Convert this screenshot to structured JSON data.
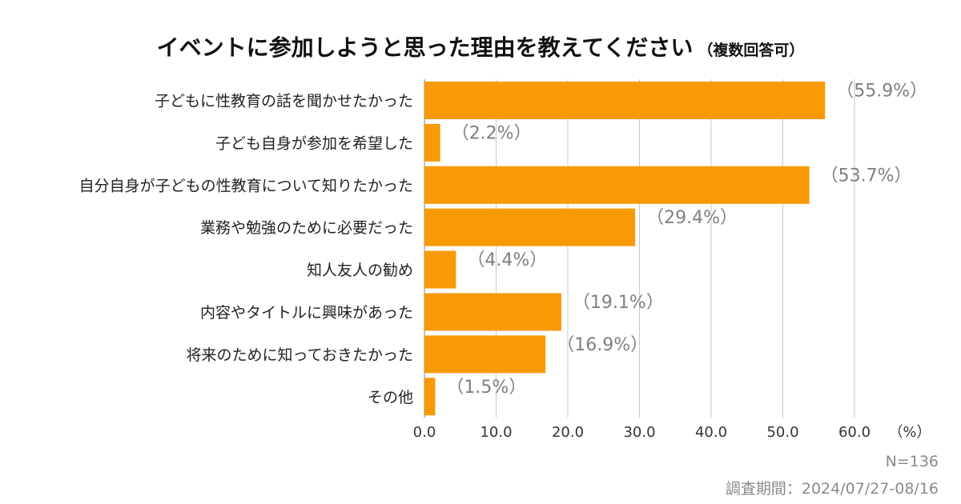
{
  "title": "イベントに参加しようと思った理由を教えてください",
  "subtitle": "（複数回答可）",
  "sample_size": "N=136",
  "survey_period": "調査期間：2024/07/27-08/16",
  "colors": {
    "bar": "#F79A05",
    "grid": "#c8c8c8",
    "axis": "#9a9a9a",
    "value_text": "#7f7f7f"
  },
  "chart_data": {
    "type": "bar",
    "orientation": "horizontal",
    "categories": [
      "子どもに性教育の話を聞かせたかった",
      "子ども自身が参加を希望した",
      "自分自身が子どもの性教育について知りたかった",
      "業務や勉強のために必要だった",
      "知人友人の勧め",
      "内容やタイトルに興味があった",
      "将来のために知っておきたかった",
      "その他"
    ],
    "values": [
      55.9,
      2.2,
      53.7,
      29.4,
      4.4,
      19.1,
      16.9,
      1.5
    ],
    "value_labels": [
      "（55.9%）",
      "（2.2%）",
      "（53.7%）",
      "（29.4%）",
      "（4.4%）",
      "（19.1%）",
      "（16.9%）",
      "（1.5%）"
    ],
    "xlim": [
      0,
      60
    ],
    "xticks": [
      "0.0",
      "10.0",
      "20.0",
      "30.0",
      "40.0",
      "50.0",
      "60.0"
    ],
    "xunit": "（%）",
    "grid": true
  }
}
